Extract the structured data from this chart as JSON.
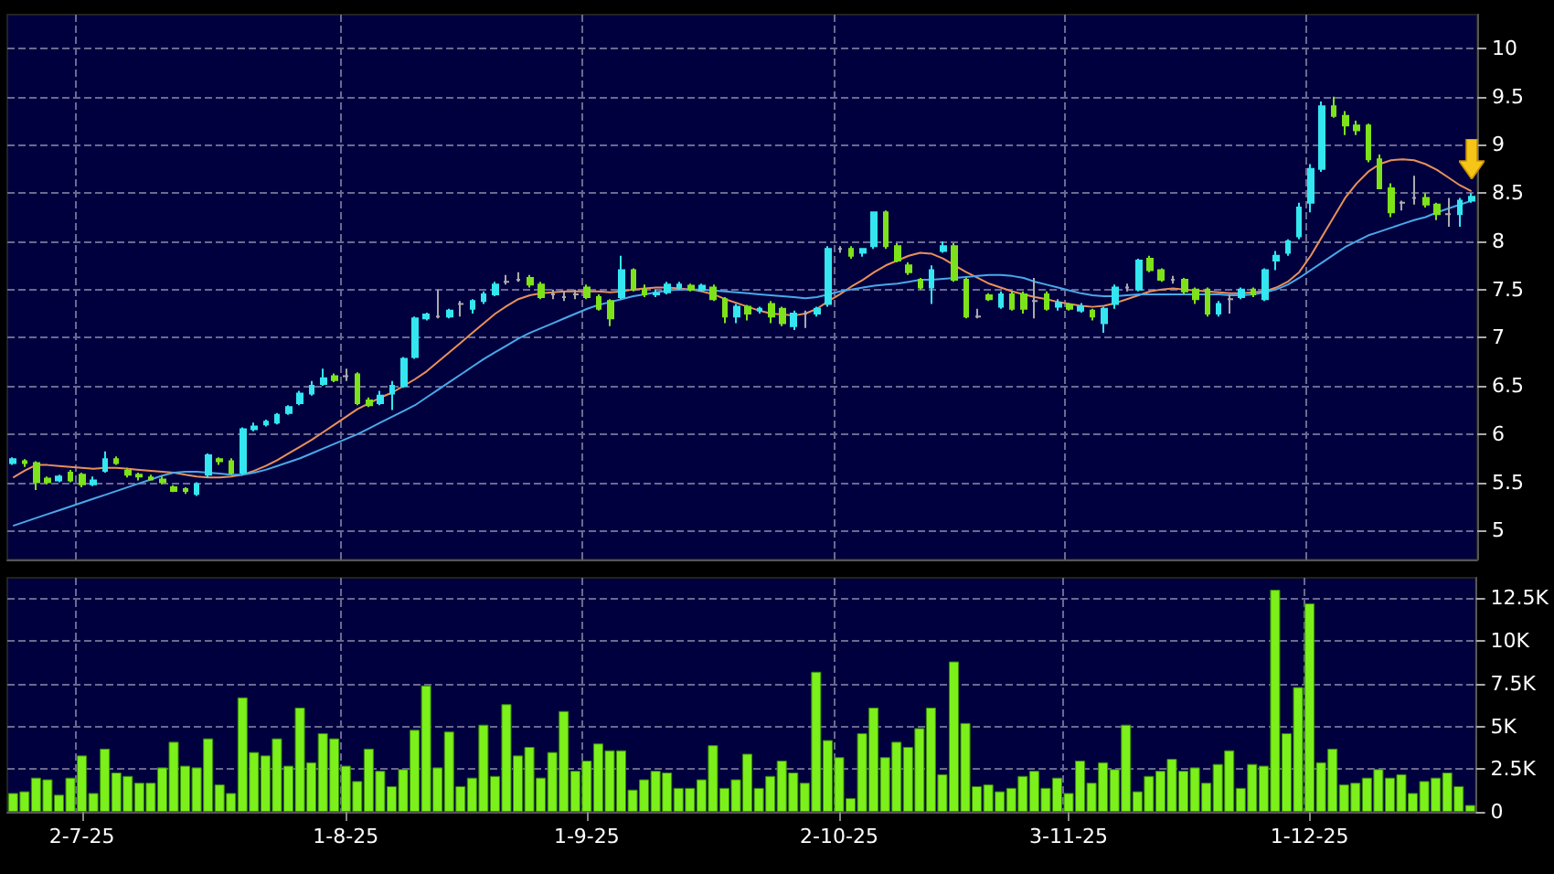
{
  "chart_data": [
    {
      "type": "candlestick",
      "tick_labels": "y",
      "grid": true,
      "colors": [
        "#33e6f0",
        "#7ee21a",
        "#7ee21a",
        "#7ee21a",
        "#33e6f0",
        "#7ee21a",
        "#7ee21a",
        "#33e6f0",
        "#33e6f0",
        "#7ee21a",
        "#7ee21a",
        "#7ee21a",
        "#7ee21a",
        "#7ee21a",
        "#7ee21a",
        "#7ee21a",
        "#33e6f0",
        "#33e6f0",
        "#7ee21a",
        "#7ee21a",
        "#33e6f0",
        "#33e6f0",
        "#33e6f0",
        "#33e6f0",
        "#33e6f0",
        "#33e6f0",
        "#33e6f0",
        "#33e6f0",
        "#7ee21a",
        "#aaaaaa",
        "#7ee21a",
        "#7ee21a",
        "#33e6f0",
        "#33e6f0",
        "#33e6f0",
        "#33e6f0",
        "#33e6f0",
        "#aaaaaa",
        "#33e6f0",
        "#aaaaaa",
        "#33e6f0",
        "#33e6f0",
        "#33e6f0",
        "#aaaaaa",
        "#aaaaaa",
        "#7ee21a",
        "#7ee21a",
        "#aaaaaa",
        "#aaaaaa",
        "#aaaaaa",
        "#7ee21a",
        "#7ee21a",
        "#7ee21a",
        "#33e6f0",
        "#7ee21a",
        "#7ee21a",
        "#33e6f0",
        "#33e6f0",
        "#33e6f0",
        "#7ee21a",
        "#33e6f0",
        "#7ee21a",
        "#7ee21a",
        "#33e6f0",
        "#7ee21a",
        "#33e6f0",
        "#7ee21a",
        "#7ee21a",
        "#33e6f0",
        "#aaaaaa",
        "#33e6f0",
        "#33e6f0",
        "#aaaaaa",
        "#7ee21a",
        "#33e6f0",
        "#33e6f0",
        "#7ee21a",
        "#7ee21a",
        "#7ee21a",
        "#7ee21a",
        "#33e6f0",
        "#33e6f0",
        "#7ee21a",
        "#7ee21a",
        "#aaaaaa",
        "#7ee21a",
        "#33e6f0",
        "#7ee21a",
        "#7ee21a",
        "#aaaaaa",
        "#7ee21a",
        "#33e6f0",
        "#7ee21a",
        "#33e6f0",
        "#7ee21a",
        "#33e6f0",
        "#33e6f0",
        "#aaaaaa",
        "#33e6f0",
        "#7ee21a",
        "#7ee21a",
        "#aaaaaa",
        "#7ee21a",
        "#7ee21a",
        "#7ee21a",
        "#33e6f0",
        "#aaaaaa",
        "#33e6f0",
        "#7ee21a",
        "#33e6f0",
        "#33e6f0",
        "#33e6f0",
        "#33e6f0",
        "#33e6f0",
        "#33e6f0",
        "#7ee21a",
        "#7ee21a",
        "#7ee21a",
        "#7ee21a",
        "#7ee21a",
        "#7ee21a",
        "#aaaaaa",
        "#aaaaaa",
        "#7ee21a",
        "#7ee21a",
        "#aaaaaa",
        "#33e6f0",
        "#33e6f0"
      ],
      "categories": [
        null,
        null,
        null,
        null,
        null,
        null,
        null,
        null,
        null,
        null,
        null,
        null,
        null,
        null,
        null,
        null,
        null,
        null,
        null,
        null,
        null,
        null,
        null,
        null,
        null,
        null,
        null,
        null,
        null,
        null,
        null,
        null,
        null,
        null,
        null,
        null,
        null,
        null,
        null,
        null,
        null,
        null,
        null,
        null,
        null,
        null,
        null,
        null,
        null,
        null,
        null,
        null,
        null,
        null,
        null,
        null,
        null,
        null,
        null,
        null,
        null,
        null,
        null,
        null,
        null,
        null,
        null,
        null,
        null,
        null,
        null,
        null,
        null,
        null,
        null,
        null,
        null,
        null,
        null,
        null,
        null,
        null,
        null,
        null,
        null,
        null,
        null,
        null,
        null,
        null,
        null,
        null,
        null,
        null,
        null,
        null,
        null,
        null,
        null,
        null,
        null,
        null,
        null,
        null,
        null,
        null,
        null,
        null,
        null,
        null,
        null,
        null,
        null,
        null,
        null,
        null,
        null,
        null,
        null,
        null,
        null,
        null,
        null,
        null,
        null,
        null,
        null,
        null
      ],
      "ylim": [
        4.7,
        10.35
      ],
      "yticks": [
        5,
        5.5,
        6,
        6.5,
        7,
        7.5,
        8,
        8.5,
        9,
        9.5,
        10
      ],
      "ohlc": [
        [
          5.7,
          5.76,
          5.68,
          5.74
        ],
        [
          5.72,
          5.74,
          5.66,
          5.7
        ],
        [
          5.7,
          5.72,
          5.42,
          5.5
        ],
        [
          5.54,
          5.56,
          5.48,
          5.5
        ],
        [
          5.52,
          5.58,
          5.5,
          5.56
        ],
        [
          5.6,
          5.63,
          5.5,
          5.52
        ],
        [
          5.58,
          5.6,
          5.45,
          5.48
        ],
        [
          5.48,
          5.56,
          5.46,
          5.52
        ],
        [
          5.62,
          5.82,
          5.6,
          5.74
        ],
        [
          5.74,
          5.77,
          5.68,
          5.7
        ],
        [
          5.62,
          5.65,
          5.55,
          5.58
        ],
        [
          5.58,
          5.6,
          5.52,
          5.56
        ],
        [
          5.55,
          5.58,
          5.52,
          5.53
        ],
        [
          5.53,
          5.56,
          5.48,
          5.5
        ],
        [
          5.45,
          5.47,
          5.4,
          5.41
        ],
        [
          5.43,
          5.45,
          5.38,
          5.41
        ],
        [
          5.38,
          5.5,
          5.36,
          5.48
        ],
        [
          5.58,
          5.8,
          5.55,
          5.78
        ],
        [
          5.74,
          5.76,
          5.68,
          5.72
        ],
        [
          5.72,
          5.75,
          5.58,
          5.6
        ],
        [
          5.6,
          6.07,
          5.58,
          6.05
        ],
        [
          6.05,
          6.12,
          6.03,
          6.08
        ],
        [
          6.1,
          6.15,
          6.08,
          6.13
        ],
        [
          6.12,
          6.22,
          6.1,
          6.2
        ],
        [
          6.22,
          6.3,
          6.2,
          6.28
        ],
        [
          6.32,
          6.45,
          6.3,
          6.42
        ],
        [
          6.42,
          6.55,
          6.4,
          6.5
        ],
        [
          6.52,
          6.68,
          6.5,
          6.58
        ],
        [
          6.6,
          6.63,
          6.54,
          6.56
        ],
        [
          6.6,
          6.68,
          6.55,
          6.6
        ],
        [
          6.62,
          6.64,
          6.3,
          6.32
        ],
        [
          6.35,
          6.38,
          6.28,
          6.3
        ],
        [
          6.32,
          6.45,
          6.3,
          6.4
        ],
        [
          6.42,
          6.55,
          6.25,
          6.5
        ],
        [
          6.5,
          6.8,
          6.48,
          6.78
        ],
        [
          6.8,
          7.22,
          6.78,
          7.2
        ],
        [
          7.2,
          7.26,
          7.18,
          7.24
        ],
        [
          7.22,
          7.5,
          7.2,
          7.22
        ],
        [
          7.22,
          7.3,
          7.2,
          7.28
        ],
        [
          7.35,
          7.38,
          7.22,
          7.35
        ],
        [
          7.3,
          7.4,
          7.25,
          7.38
        ],
        [
          7.38,
          7.48,
          7.35,
          7.45
        ],
        [
          7.45,
          7.58,
          7.43,
          7.55
        ],
        [
          7.58,
          7.65,
          7.55,
          7.58
        ],
        [
          7.6,
          7.68,
          7.58,
          7.6
        ],
        [
          7.62,
          7.65,
          7.52,
          7.55
        ],
        [
          7.55,
          7.58,
          7.4,
          7.42
        ],
        [
          7.45,
          7.5,
          7.4,
          7.45
        ],
        [
          7.42,
          7.48,
          7.38,
          7.42
        ],
        [
          7.45,
          7.5,
          7.4,
          7.45
        ],
        [
          7.52,
          7.55,
          7.4,
          7.42
        ],
        [
          7.42,
          7.45,
          7.28,
          7.3
        ],
        [
          7.38,
          7.4,
          7.12,
          7.2
        ],
        [
          7.42,
          7.85,
          7.4,
          7.7
        ],
        [
          7.7,
          7.72,
          7.48,
          7.5
        ],
        [
          7.5,
          7.55,
          7.42,
          7.45
        ],
        [
          7.45,
          7.5,
          7.42,
          7.46
        ],
        [
          7.47,
          7.58,
          7.45,
          7.55
        ],
        [
          7.52,
          7.58,
          7.5,
          7.55
        ],
        [
          7.54,
          7.56,
          7.48,
          7.5
        ],
        [
          7.5,
          7.56,
          7.48,
          7.54
        ],
        [
          7.52,
          7.55,
          7.38,
          7.4
        ],
        [
          7.4,
          7.42,
          7.15,
          7.22
        ],
        [
          7.22,
          7.35,
          7.15,
          7.32
        ],
        [
          7.32,
          7.34,
          7.18,
          7.25
        ],
        [
          7.28,
          7.32,
          7.25,
          7.3
        ],
        [
          7.35,
          7.38,
          7.15,
          7.22
        ],
        [
          7.3,
          7.32,
          7.12,
          7.15
        ],
        [
          7.12,
          7.28,
          7.08,
          7.25
        ],
        [
          7.25,
          7.28,
          7.1,
          7.25
        ],
        [
          7.25,
          7.32,
          7.22,
          7.3
        ],
        [
          7.35,
          7.95,
          7.32,
          7.92
        ],
        [
          7.92,
          7.95,
          7.88,
          7.92
        ],
        [
          7.92,
          7.95,
          7.82,
          7.85
        ],
        [
          7.88,
          7.93,
          7.84,
          7.92
        ],
        [
          7.95,
          8.3,
          7.92,
          8.3
        ],
        [
          8.3,
          8.32,
          7.92,
          7.95
        ],
        [
          7.95,
          7.98,
          7.78,
          7.8
        ],
        [
          7.75,
          7.78,
          7.65,
          7.68
        ],
        [
          7.6,
          7.62,
          7.5,
          7.52
        ],
        [
          7.52,
          7.75,
          7.35,
          7.7
        ],
        [
          7.9,
          8.0,
          7.88,
          7.95
        ],
        [
          7.95,
          7.98,
          7.58,
          7.6
        ],
        [
          7.6,
          7.62,
          7.2,
          7.22
        ],
        [
          7.22,
          7.3,
          7.2,
          7.22
        ],
        [
          7.44,
          7.46,
          7.38,
          7.4
        ],
        [
          7.32,
          7.48,
          7.3,
          7.45
        ],
        [
          7.45,
          7.48,
          7.28,
          7.3
        ],
        [
          7.45,
          7.48,
          7.25,
          7.3
        ],
        [
          7.38,
          7.62,
          7.2,
          7.38
        ],
        [
          7.45,
          7.48,
          7.28,
          7.3
        ],
        [
          7.32,
          7.4,
          7.28,
          7.36
        ],
        [
          7.34,
          7.36,
          7.28,
          7.3
        ],
        [
          7.28,
          7.36,
          7.26,
          7.32
        ],
        [
          7.28,
          7.3,
          7.18,
          7.22
        ],
        [
          7.15,
          7.32,
          7.05,
          7.3
        ],
        [
          7.35,
          7.55,
          7.3,
          7.52
        ],
        [
          7.52,
          7.56,
          7.48,
          7.52
        ],
        [
          7.5,
          7.82,
          7.48,
          7.8
        ],
        [
          7.82,
          7.85,
          7.68,
          7.7
        ],
        [
          7.7,
          7.72,
          7.58,
          7.6
        ],
        [
          7.6,
          7.64,
          7.56,
          7.6
        ],
        [
          7.6,
          7.62,
          7.45,
          7.48
        ],
        [
          7.5,
          7.52,
          7.35,
          7.4
        ],
        [
          7.5,
          7.52,
          7.22,
          7.25
        ],
        [
          7.25,
          7.38,
          7.22,
          7.35
        ],
        [
          7.4,
          7.45,
          7.25,
          7.4
        ],
        [
          7.42,
          7.52,
          7.4,
          7.5
        ],
        [
          7.5,
          7.52,
          7.42,
          7.45
        ],
        [
          7.4,
          7.72,
          7.38,
          7.7
        ],
        [
          7.8,
          7.9,
          7.7,
          7.85
        ],
        [
          7.88,
          8.02,
          7.85,
          8.0
        ],
        [
          8.05,
          8.4,
          8.02,
          8.35
        ],
        [
          8.4,
          8.8,
          8.3,
          8.75
        ],
        [
          8.75,
          9.45,
          8.72,
          9.4
        ],
        [
          9.4,
          9.5,
          9.28,
          9.3
        ],
        [
          9.3,
          9.35,
          9.1,
          9.2
        ],
        [
          9.2,
          9.25,
          9.1,
          9.15
        ],
        [
          9.2,
          9.22,
          8.82,
          8.85
        ],
        [
          8.85,
          8.9,
          8.55,
          8.55
        ],
        [
          8.55,
          8.6,
          8.25,
          8.3
        ],
        [
          8.4,
          8.42,
          8.32,
          8.4
        ],
        [
          8.45,
          8.68,
          8.38,
          8.45
        ],
        [
          8.45,
          8.5,
          8.35,
          8.38
        ],
        [
          8.38,
          8.4,
          8.22,
          8.28
        ],
        [
          8.28,
          8.45,
          8.15,
          8.28
        ],
        [
          8.28,
          8.45,
          8.15,
          8.42
        ],
        [
          8.42,
          8.5,
          8.4,
          8.46
        ]
      ],
      "series": [
        {
          "type": "line",
          "color": "#e8905a",
          "values": [
            5.55,
            5.62,
            5.68,
            5.68,
            5.67,
            5.66,
            5.65,
            5.64,
            5.65,
            5.65,
            5.64,
            5.63,
            5.62,
            5.61,
            5.6,
            5.58,
            5.56,
            5.55,
            5.55,
            5.56,
            5.58,
            5.62,
            5.67,
            5.73,
            5.8,
            5.87,
            5.94,
            6.02,
            6.1,
            6.18,
            6.26,
            6.32,
            6.38,
            6.43,
            6.5,
            6.57,
            6.65,
            6.75,
            6.85,
            6.95,
            7.05,
            7.15,
            7.25,
            7.33,
            7.4,
            7.44,
            7.46,
            7.47,
            7.48,
            7.48,
            7.48,
            7.48,
            7.47,
            7.48,
            7.5,
            7.51,
            7.52,
            7.52,
            7.51,
            7.5,
            7.48,
            7.45,
            7.4,
            7.36,
            7.32,
            7.28,
            7.25,
            7.24,
            7.23,
            7.25,
            7.3,
            7.38,
            7.45,
            7.53,
            7.6,
            7.68,
            7.75,
            7.8,
            7.85,
            7.88,
            7.87,
            7.82,
            7.75,
            7.68,
            7.62,
            7.56,
            7.52,
            7.48,
            7.45,
            7.42,
            7.4,
            7.37,
            7.35,
            7.33,
            7.32,
            7.33,
            7.36,
            7.4,
            7.44,
            7.48,
            7.5,
            7.51,
            7.5,
            7.49,
            7.48,
            7.47,
            7.46,
            7.46,
            7.47,
            7.48,
            7.52,
            7.58,
            7.68,
            7.85,
            8.05,
            8.25,
            8.45,
            8.6,
            8.72,
            8.8,
            8.84,
            8.85,
            8.84,
            8.8,
            8.74,
            8.66,
            8.58,
            8.52
          ]
        },
        {
          "type": "line",
          "color": "#4aa8e8",
          "values": [
            5.05,
            5.09,
            5.13,
            5.17,
            5.21,
            5.25,
            5.29,
            5.33,
            5.37,
            5.41,
            5.45,
            5.49,
            5.53,
            5.57,
            5.6,
            5.61,
            5.61,
            5.6,
            5.59,
            5.58,
            5.58,
            5.6,
            5.63,
            5.67,
            5.71,
            5.75,
            5.8,
            5.85,
            5.9,
            5.95,
            6.0,
            6.06,
            6.12,
            6.18,
            6.24,
            6.3,
            6.38,
            6.46,
            6.54,
            6.62,
            6.7,
            6.78,
            6.85,
            6.92,
            6.99,
            7.05,
            7.1,
            7.15,
            7.2,
            7.25,
            7.3,
            7.34,
            7.37,
            7.4,
            7.43,
            7.45,
            7.47,
            7.49,
            7.5,
            7.5,
            7.5,
            7.49,
            7.48,
            7.47,
            7.46,
            7.45,
            7.44,
            7.43,
            7.42,
            7.41,
            7.42,
            7.45,
            7.48,
            7.5,
            7.52,
            7.54,
            7.55,
            7.56,
            7.58,
            7.6,
            7.6,
            7.61,
            7.62,
            7.63,
            7.64,
            7.65,
            7.65,
            7.64,
            7.62,
            7.58,
            7.55,
            7.52,
            7.49,
            7.46,
            7.44,
            7.43,
            7.43,
            7.44,
            7.45,
            7.45,
            7.45,
            7.45,
            7.45,
            7.45,
            7.45,
            7.45,
            7.44,
            7.44,
            7.45,
            7.47,
            7.5,
            7.55,
            7.62,
            7.7,
            7.78,
            7.86,
            7.94,
            8.0,
            8.06,
            8.1,
            8.14,
            8.18,
            8.22,
            8.25,
            8.3,
            8.34,
            8.38,
            8.42
          ]
        }
      ]
    },
    {
      "type": "bar",
      "grid": true,
      "color": "#7cf01a",
      "categories": [
        null,
        null,
        null,
        null,
        null,
        null,
        "2-7-25",
        null,
        null,
        null,
        null,
        null,
        null,
        null,
        null,
        null,
        null,
        null,
        null,
        null,
        null,
        null,
        null,
        null,
        null,
        null,
        null,
        null,
        null,
        "1-8-25",
        null,
        null,
        null,
        null,
        null,
        null,
        null,
        null,
        null,
        null,
        null,
        null,
        null,
        null,
        null,
        null,
        null,
        null,
        null,
        null,
        "1-9-25",
        null,
        null,
        null,
        null,
        null,
        null,
        null,
        null,
        null,
        null,
        null,
        null,
        null,
        null,
        null,
        null,
        null,
        null,
        null,
        null,
        null,
        "2-10-25",
        null,
        null,
        null,
        null,
        null,
        null,
        null,
        null,
        null,
        null,
        null,
        null,
        null,
        null,
        null,
        null,
        null,
        null,
        null,
        "3-11-25",
        null,
        null,
        null,
        null,
        null,
        null,
        null,
        null,
        null,
        null,
        null,
        null,
        null,
        null,
        null,
        null,
        null,
        null,
        null,
        null,
        "1-12-25",
        null,
        null,
        null,
        null,
        null,
        null,
        null,
        null,
        null,
        null,
        null,
        null,
        null,
        null
      ],
      "ylim": [
        0,
        13.7
      ],
      "yticks": [
        0,
        {
          "value": 2.5,
          "label": "2.5K"
        },
        {
          "value": 5,
          "label": "5K"
        },
        {
          "value": 7.5,
          "label": "7.5K"
        },
        {
          "value": 10,
          "label": "10K"
        },
        {
          "value": 12.5,
          "label": "12.5K"
        }
      ],
      "values": [
        1.1,
        1.2,
        2.0,
        1.9,
        1.0,
        2.0,
        3.3,
        1.1,
        3.7,
        2.3,
        2.1,
        1.7,
        1.7,
        2.6,
        4.1,
        2.7,
        2.6,
        4.3,
        1.6,
        1.1,
        6.7,
        3.5,
        3.3,
        4.3,
        2.7,
        6.1,
        2.9,
        4.6,
        4.3,
        2.7,
        1.8,
        3.7,
        2.4,
        1.5,
        2.5,
        4.8,
        7.4,
        2.6,
        4.7,
        1.5,
        2.0,
        5.1,
        2.1,
        6.3,
        3.3,
        3.8,
        2.0,
        3.5,
        5.9,
        2.4,
        3.0,
        4.0,
        3.6,
        3.6,
        1.3,
        1.9,
        2.4,
        2.3,
        1.4,
        1.4,
        1.9,
        3.9,
        1.4,
        1.9,
        3.4,
        1.4,
        2.1,
        3.0,
        2.3,
        1.7,
        8.2,
        4.2,
        3.2,
        0.8,
        4.6,
        6.1,
        3.2,
        4.1,
        3.8,
        4.9,
        6.1,
        2.2,
        8.8,
        5.2,
        1.5,
        1.6,
        1.2,
        1.4,
        2.1,
        2.4,
        1.4,
        2.0,
        1.1,
        3.0,
        1.7,
        2.9,
        2.5,
        5.1,
        1.2,
        2.1,
        2.4,
        3.1,
        2.4,
        2.6,
        1.7,
        2.8,
        3.6,
        1.4,
        2.8,
        2.7,
        13.0,
        4.6,
        7.3,
        12.2,
        2.9,
        3.7,
        1.6,
        1.7,
        2.0,
        2.5,
        2.0,
        2.2,
        1.1,
        1.8,
        2.0,
        2.3,
        1.5,
        0.4
      ]
    }
  ]
}
